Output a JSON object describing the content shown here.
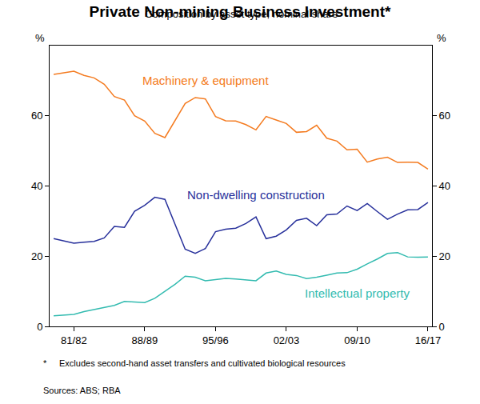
{
  "chart_data": {
    "type": "line",
    "title": "Private Non-mining Business Investment*",
    "subtitle": "Composition by asset type, nominal share",
    "ylabel": "%",
    "categories": [
      null,
      null,
      "81/82",
      null,
      null,
      null,
      null,
      null,
      null,
      "88/89",
      null,
      null,
      null,
      null,
      null,
      null,
      "95/96",
      null,
      null,
      null,
      null,
      null,
      null,
      "02/03",
      null,
      null,
      null,
      null,
      null,
      null,
      "09/10",
      null,
      null,
      null,
      null,
      null,
      null,
      "16/17"
    ],
    "series": [
      {
        "name": "Machinery & equipment",
        "color": "#f47b20",
        "values": [
          71.8,
          72.3,
          72.7,
          71.5,
          70.8,
          69,
          65.5,
          64.5,
          60,
          58.5,
          55,
          53.8,
          58.5,
          63.5,
          65.2,
          64.8,
          59.8,
          58.6,
          58.5,
          57.5,
          56,
          59.8,
          58.8,
          57.8,
          55.3,
          55.5,
          57.3,
          53.6,
          52.8,
          50.3,
          50.5,
          46.8,
          47.7,
          48.2,
          46.7,
          46.8,
          46.7,
          44.8
        ]
      },
      {
        "name": "Non-dwelling construction",
        "color": "#27309b",
        "values": [
          25,
          24.3,
          23.7,
          24,
          24.2,
          25.2,
          28.5,
          28.2,
          32.8,
          34.5,
          36.8,
          36.2,
          29,
          22,
          20.8,
          22.2,
          27,
          27.7,
          28,
          29.3,
          31.2,
          25,
          25.7,
          27.5,
          30.2,
          30.8,
          28.7,
          31.8,
          32,
          34.3,
          33,
          35,
          32.7,
          30.5,
          32,
          33.2,
          33.3,
          35.3
        ]
      },
      {
        "name": "Intellectual property",
        "color": "#33bbb0",
        "values": [
          3,
          3.2,
          3.4,
          4.2,
          4.8,
          5.5,
          6,
          7.1,
          7,
          6.8,
          8,
          10,
          12,
          14.3,
          14,
          13,
          13.3,
          13.7,
          13.5,
          13.2,
          13,
          15.2,
          15.8,
          14.8,
          14.5,
          13.6,
          14,
          14.6,
          15.2,
          15.3,
          16.3,
          17.8,
          19.2,
          20.8,
          21,
          19.8,
          19.7,
          19.8
        ]
      }
    ],
    "ylim": [
      0,
      80
    ],
    "yticks": [
      0,
      20,
      40,
      60
    ],
    "grid": false,
    "legend": "none",
    "notes": [
      "*",
      "Excludes second-hand asset transfers and cultivated biological resources",
      "Sources: ABS; RBA"
    ]
  }
}
